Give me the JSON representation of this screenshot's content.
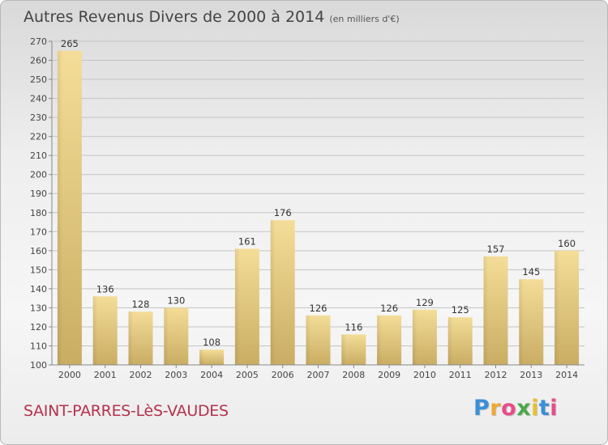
{
  "header": {
    "title": "Autres Revenus Divers de 2000 à 2014",
    "unit": "(en milliers d'€)"
  },
  "footer": {
    "town": "SAINT-PARRES-LèS-VAUDES",
    "logo_letters": [
      "P",
      "r",
      "o",
      "x",
      "i",
      "t",
      "i"
    ],
    "logo_colors": [
      "#3a8fd8",
      "#f0a830",
      "#e84c8a",
      "#4aa84a",
      "#e8c030",
      "#3a8fd8",
      "#e84c8a"
    ]
  },
  "chart_data": {
    "type": "bar",
    "title": "Autres Revenus Divers de 2000 à 2014",
    "unit": "(en milliers d'€)",
    "categories": [
      "2000",
      "2001",
      "2002",
      "2003",
      "2004",
      "2005",
      "2006",
      "2007",
      "2008",
      "2009",
      "2010",
      "2011",
      "2012",
      "2013",
      "2014"
    ],
    "values": [
      265,
      136,
      128,
      130,
      108,
      161,
      176,
      126,
      116,
      126,
      129,
      125,
      157,
      145,
      160
    ],
    "ylim": [
      100,
      270
    ],
    "yticks": [
      100,
      110,
      120,
      130,
      140,
      150,
      160,
      170,
      180,
      190,
      200,
      210,
      220,
      230,
      240,
      250,
      260,
      270
    ],
    "grid": true,
    "bar_color": "#e8cf86"
  }
}
